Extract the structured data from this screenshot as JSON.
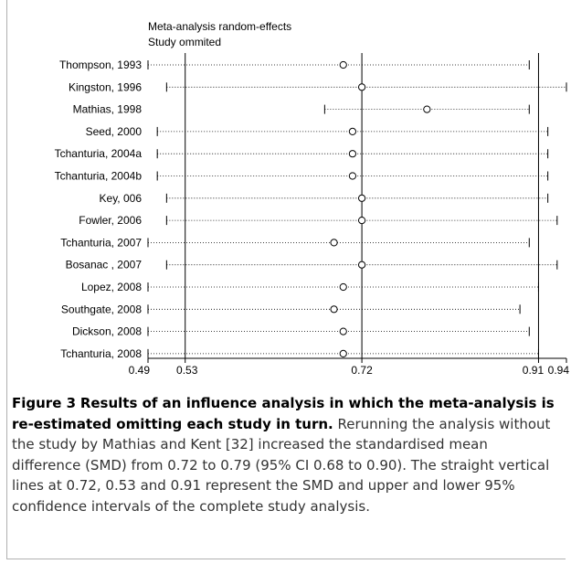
{
  "chart_data": {
    "type": "forest",
    "title": "Meta-analysis random-effects",
    "subtitle": "Study ommited",
    "xlim": [
      0.49,
      0.94
    ],
    "xticks": [
      "0.49",
      "0.53",
      "0.72",
      "0.91",
      "0.94"
    ],
    "reference_lines": [
      0.53,
      0.72,
      0.91
    ],
    "studies": [
      {
        "label": "Thompson, 1993",
        "estimate": 0.7,
        "lower": 0.49,
        "upper": 0.9
      },
      {
        "label": "Kingston, 1996",
        "estimate": 0.72,
        "lower": 0.51,
        "upper": 0.94
      },
      {
        "label": "Mathias, 1998",
        "estimate": 0.79,
        "lower": 0.68,
        "upper": 0.9
      },
      {
        "label": "Seed, 2000",
        "estimate": 0.71,
        "lower": 0.5,
        "upper": 0.92
      },
      {
        "label": "Tchanturia, 2004a",
        "estimate": 0.71,
        "lower": 0.5,
        "upper": 0.92
      },
      {
        "label": "Tchanturia, 2004b",
        "estimate": 0.71,
        "lower": 0.5,
        "upper": 0.92
      },
      {
        "label": "Key, 006",
        "estimate": 0.72,
        "lower": 0.51,
        "upper": 0.92
      },
      {
        "label": "Fowler, 2006",
        "estimate": 0.72,
        "lower": 0.51,
        "upper": 0.93
      },
      {
        "label": "Tchanturia, 2007",
        "estimate": 0.69,
        "lower": 0.49,
        "upper": 0.9
      },
      {
        "label": "Bosanac , 2007",
        "estimate": 0.72,
        "lower": 0.51,
        "upper": 0.93
      },
      {
        "label": "Lopez, 2008",
        "estimate": 0.7,
        "lower": 0.49,
        "upper": 0.91
      },
      {
        "label": "Southgate, 2008",
        "estimate": 0.69,
        "lower": 0.49,
        "upper": 0.89
      },
      {
        "label": "Dickson, 2008",
        "estimate": 0.7,
        "lower": 0.49,
        "upper": 0.9
      },
      {
        "label": "Tchanturia, 2008",
        "estimate": 0.7,
        "lower": 0.49,
        "upper": 0.91
      }
    ]
  },
  "caption": {
    "figure_label": "Figure 3",
    "title": "Results of an influence analysis in which the meta-analysis is re-estimated omitting each study in turn",
    "title_end": ".",
    "body": " Rerunning the analysis without the study by Mathias and Kent [32] increased the standardised mean difference (SMD) from 0.72 to 0.79 (95% CI 0.68 to 0.90). The straight vertical lines at 0.72, 0.53 and 0.91 represent the SMD and upper and lower 95% confidence intervals of the complete study analysis."
  }
}
